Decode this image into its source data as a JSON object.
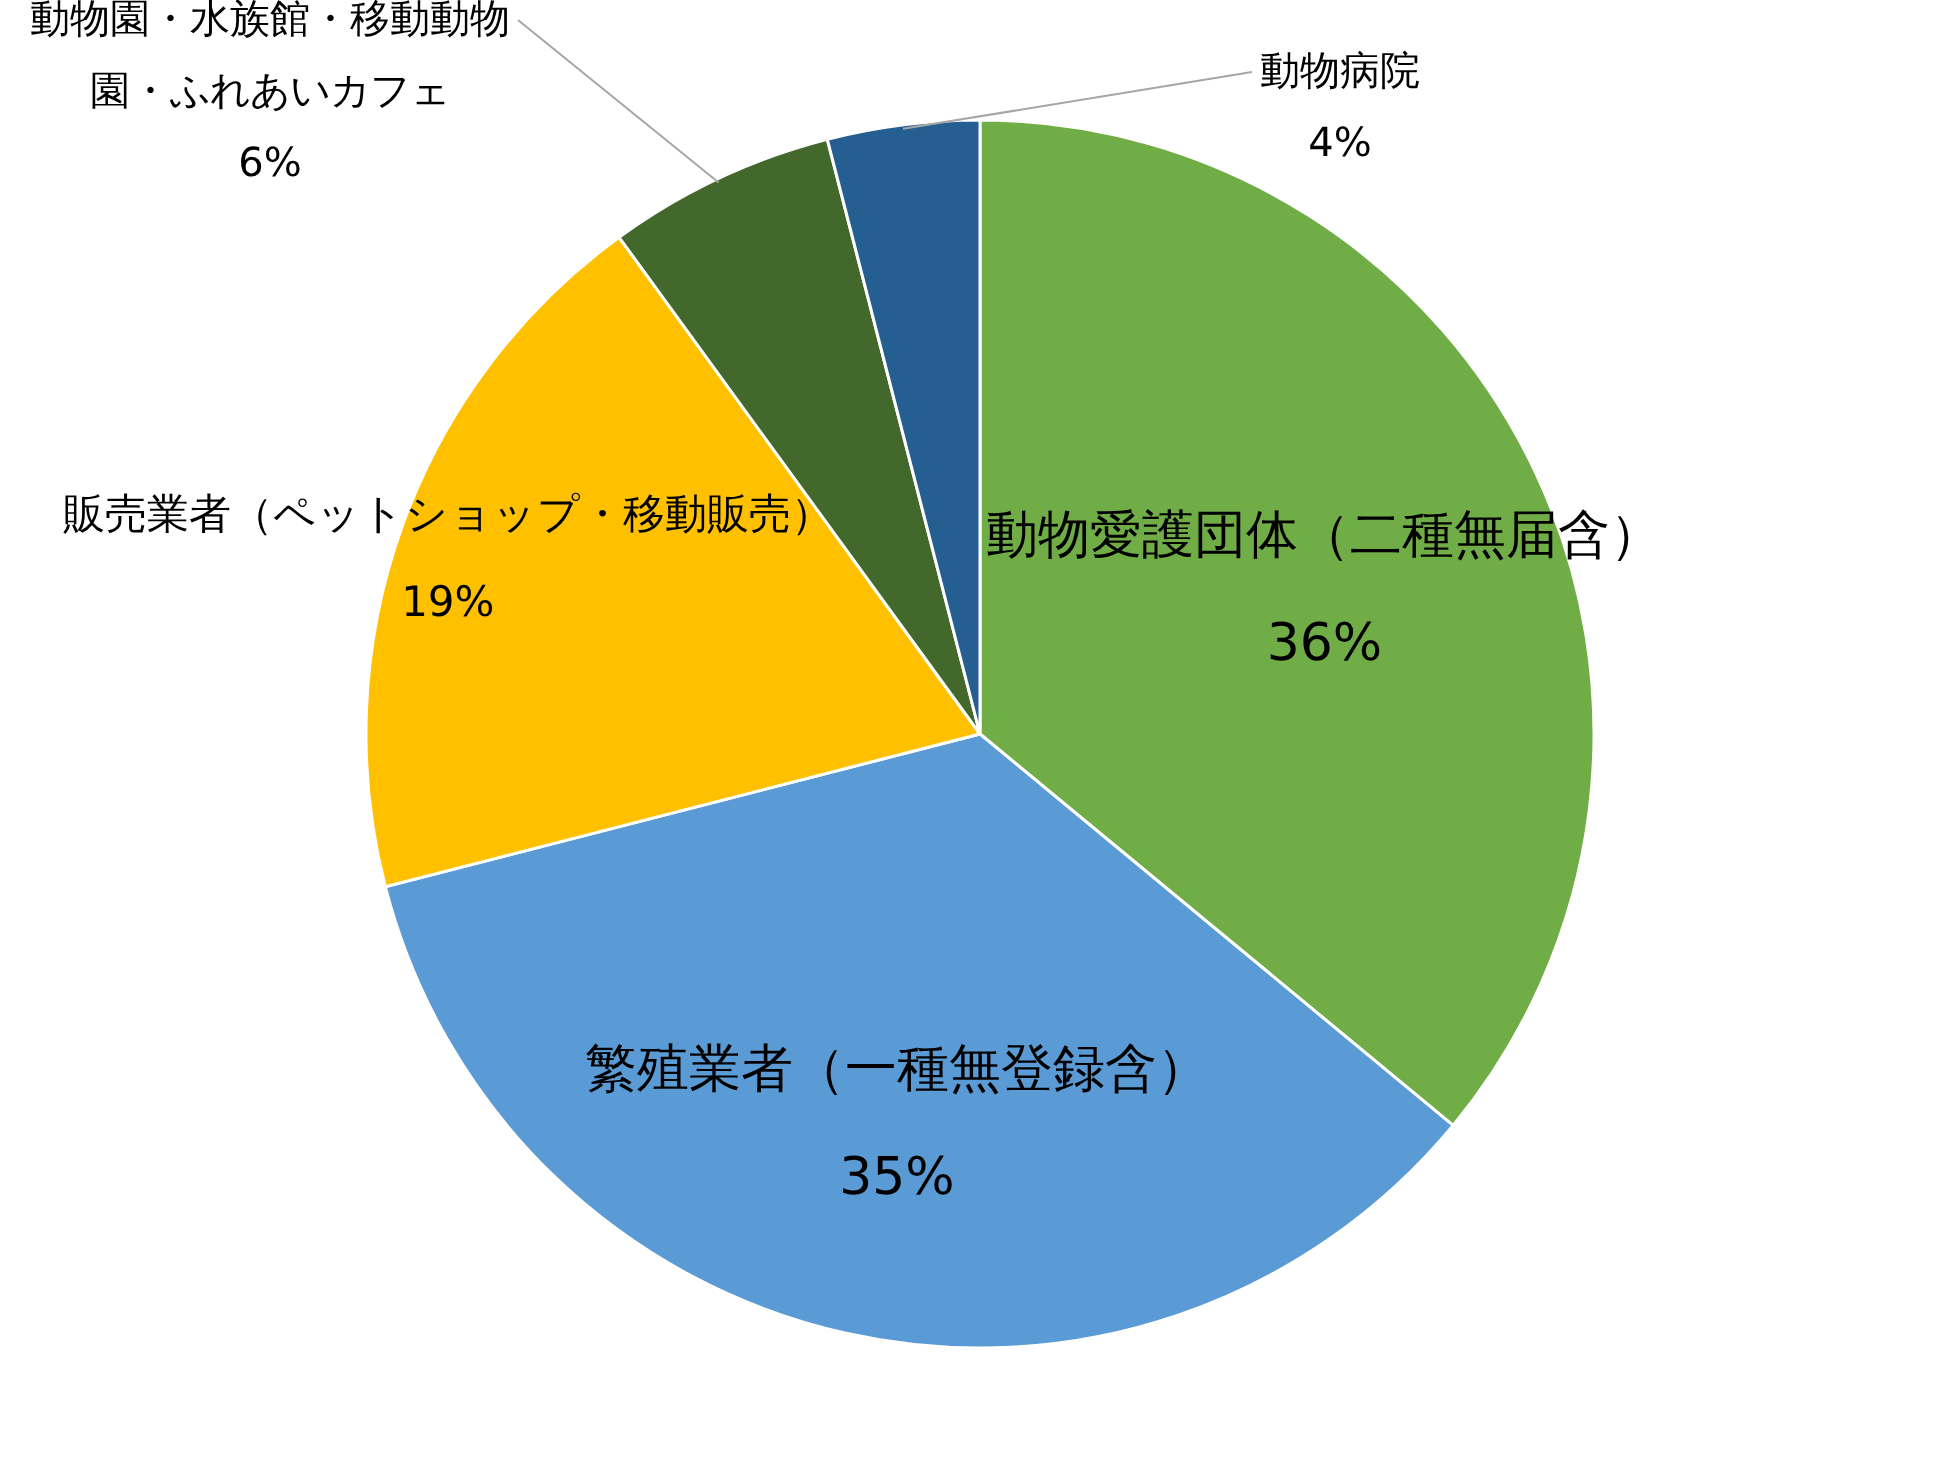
{
  "chart_data": {
    "type": "pie",
    "categories": [
      "動物愛護団体（二種無届含）",
      "繁殖業者（一種無登録含）",
      "販売業者（ペットショップ・移動販売）",
      "動物園・水族館・移動動物園・ふれあいカフェ",
      "動物病院"
    ],
    "values": [
      36,
      35,
      19,
      6,
      4
    ],
    "colors": [
      "#70ad47",
      "#5b9bd5",
      "#ffc000",
      "#43682b",
      "#255e91"
    ],
    "value_labels": [
      "36%",
      "35%",
      "19%",
      "6%",
      "4%"
    ]
  }
}
